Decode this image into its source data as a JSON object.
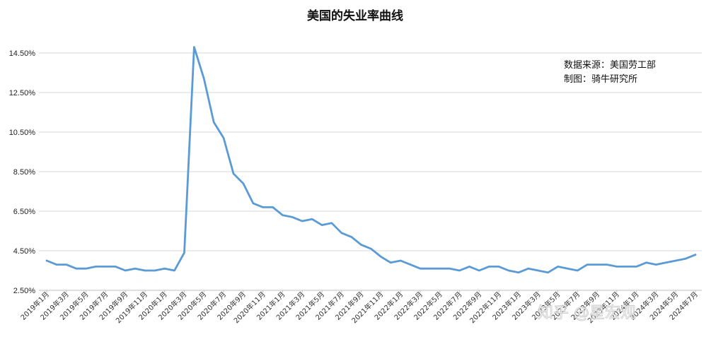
{
  "chart_data": {
    "type": "line",
    "title": "美国的失业率曲线",
    "xlabel": "",
    "ylabel": "",
    "ylim": [
      2.5,
      15.5
    ],
    "yticks": [
      "2.50%",
      "4.50%",
      "6.50%",
      "8.50%",
      "10.50%",
      "12.50%",
      "14.50%"
    ],
    "ytick_values": [
      2.5,
      4.5,
      6.5,
      8.5,
      10.5,
      12.5,
      14.5
    ],
    "grid": true,
    "legend": "none",
    "line_color": "#5b9bd5",
    "categories": [
      "2019年1月",
      "2019年2月",
      "2019年3月",
      "2019年4月",
      "2019年5月",
      "2019年6月",
      "2019年7月",
      "2019年8月",
      "2019年9月",
      "2019年10月",
      "2019年11月",
      "2019年12月",
      "2020年1月",
      "2020年2月",
      "2020年3月",
      "2020年4月",
      "2020年5月",
      "2020年6月",
      "2020年7月",
      "2020年8月",
      "2020年9月",
      "2020年10月",
      "2020年11月",
      "2020年12月",
      "2021年1月",
      "2021年2月",
      "2021年3月",
      "2021年4月",
      "2021年5月",
      "2021年6月",
      "2021年7月",
      "2021年8月",
      "2021年9月",
      "2021年10月",
      "2021年11月",
      "2021年12月",
      "2022年1月",
      "2022年2月",
      "2022年3月",
      "2022年4月",
      "2022年5月",
      "2022年6月",
      "2022年7月",
      "2022年8月",
      "2022年9月",
      "2022年10月",
      "2022年11月",
      "2022年12月",
      "2023年1月",
      "2023年2月",
      "2023年3月",
      "2023年4月",
      "2023年5月",
      "2023年6月",
      "2023年7月",
      "2023年8月",
      "2023年9月",
      "2023年10月",
      "2023年11月",
      "2023年12月",
      "2024年1月",
      "2024年2月",
      "2024年3月",
      "2024年4月",
      "2024年5月",
      "2024年6月",
      "2024年7月"
    ],
    "tick_labels": [
      "2019年1月",
      "2019年3月",
      "2019年5月",
      "2019年7月",
      "2019年9月",
      "2019年11月",
      "2020年1月",
      "2020年3月",
      "2020年5月",
      "2020年7月",
      "2020年9月",
      "2020年11月",
      "2021年1月",
      "2021年3月",
      "2021年5月",
      "2021年7月",
      "2021年9月",
      "2021年11月",
      "2022年1月",
      "2022年3月",
      "2022年5月",
      "2022年7月",
      "2022年9月",
      "2022年11月",
      "2023年1月",
      "2023年3月",
      "2023年5月",
      "2023年7月",
      "2023年9月",
      "2023年11月",
      "2024年1月",
      "2024年3月",
      "2024年5月",
      "2024年7月"
    ],
    "values": [
      4.0,
      3.8,
      3.8,
      3.6,
      3.6,
      3.7,
      3.7,
      3.7,
      3.5,
      3.6,
      3.5,
      3.5,
      3.6,
      3.5,
      4.4,
      14.8,
      13.2,
      11.0,
      10.2,
      8.4,
      7.9,
      6.9,
      6.7,
      6.7,
      6.3,
      6.2,
      6.0,
      6.1,
      5.8,
      5.9,
      5.4,
      5.2,
      4.8,
      4.6,
      4.2,
      3.9,
      4.0,
      3.8,
      3.6,
      3.6,
      3.6,
      3.6,
      3.5,
      3.7,
      3.5,
      3.7,
      3.7,
      3.5,
      3.4,
      3.6,
      3.5,
      3.4,
      3.7,
      3.6,
      3.5,
      3.8,
      3.8,
      3.8,
      3.7,
      3.7,
      3.7,
      3.9,
      3.8,
      3.9,
      4.0,
      4.1,
      4.3
    ],
    "annotations": [
      "数据来源：美国劳工部",
      "制图：骑牛研究所"
    ]
  },
  "watermark": "知乎 @星宏观"
}
